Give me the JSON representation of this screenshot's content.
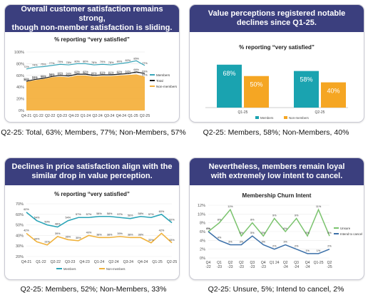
{
  "panels": [
    {
      "title_line1": "Overall customer satisfaction remains strong,",
      "title_line2": "though non-member satisfaction is sliding.",
      "subtitle": "% reporting “very satisfied”",
      "caption": "Q2-25: Total, 63%; Members, 77%; Non-Members, 57%"
    },
    {
      "title_line1": "Value perceptions registered notable",
      "title_line2": "declines since Q1-25.",
      "subtitle": "% reporting “very satisfied”",
      "caption": "Q2-25: Members, 58%; Non-Members, 40%"
    },
    {
      "title_line1": "Declines in price satisfaction align with the",
      "title_line2": "similar drop in value perception.",
      "subtitle": "% reporting “very satisfied”",
      "caption": "Q2-25: Members, 52%; Non-Members, 33%"
    },
    {
      "title_line1": "Nevertheless, members remain loyal",
      "title_line2": "with extremely low intent to cancel.",
      "subtitle": "Membership Churn Intent",
      "caption": "Q2-25: Unsure, 5%; Intend to cancel, 2%"
    }
  ],
  "chart_data": [
    {
      "type": "area",
      "title": "% reporting “very satisfied”",
      "categories": [
        "Q4-21",
        "Q1-22",
        "Q2-22",
        "Q3-22",
        "Q4-22",
        "Q1-23",
        "Q2-23",
        "Q3-23",
        "Q4-23",
        "Q1-24",
        "Q2-24",
        "Q3-24",
        "Q4-24",
        "Q1-25",
        "Q2-25"
      ],
      "x_tick_labels": [
        "Q4-21",
        "Q1-22",
        "Q2-22",
        "Q3-23",
        "Q4-23",
        "Q1-24",
        "Q2-24",
        "Q3-24",
        "Q4-24",
        "Q1-25",
        "Q2-25"
      ],
      "y_ticks": [
        "0%",
        "20%",
        "40%",
        "60%",
        "80%",
        "100%"
      ],
      "ylim": [
        0,
        100
      ],
      "series": [
        {
          "name": "Members",
          "color": "#3aa6b9",
          "values": [
            71,
            74,
            75,
            77,
            79,
            78,
            80,
            80,
            78,
            79,
            78,
            80,
            82,
            85,
            77
          ]
        },
        {
          "name": "Total",
          "color": "#1a1a1a",
          "values": [
            50,
            53,
            55,
            58,
            60,
            59,
            62,
            62,
            60,
            61,
            61,
            62,
            63,
            66,
            63
          ]
        },
        {
          "name": "Non-members",
          "color": "#f4b13f",
          "values": [
            48,
            51,
            53,
            56,
            57,
            56,
            59,
            59,
            57,
            58,
            58,
            59,
            60,
            61,
            57
          ]
        }
      ],
      "legend_position": "right"
    },
    {
      "type": "bar",
      "title": "% reporting “very satisfied”",
      "categories": [
        "Q1-25",
        "Q2-25"
      ],
      "ylim": [
        0,
        100
      ],
      "series": [
        {
          "name": "Members",
          "color": "#1aa3b0",
          "values": [
            68,
            58
          ]
        },
        {
          "name": "Non-members",
          "color": "#f5a623",
          "values": [
            50,
            40
          ]
        }
      ],
      "data_labels": [
        "68%",
        "50%",
        "58%",
        "40%"
      ],
      "legend_position": "bottom"
    },
    {
      "type": "line",
      "title": "% reporting “very satisfied”",
      "categories": [
        "Q4-21",
        "Q1-22",
        "Q2-22",
        "Q3-22",
        "Q4-22",
        "Q1-23",
        "Q2-23",
        "Q3-23",
        "Q4-23",
        "Q1-24",
        "Q2-24",
        "Q3-24",
        "Q4-24",
        "Q1-25",
        "Q2-25"
      ],
      "x_tick_labels": [
        "Q4-21",
        "Q1-22",
        "Q2-22",
        "Q3-23",
        "Q4-23",
        "Q1-24",
        "Q2-24",
        "Q3-24",
        "Q4-24",
        "Q1-25",
        "Q2-25"
      ],
      "y_ticks": [
        "20%",
        "30%",
        "40%",
        "50%",
        "60%",
        "70%"
      ],
      "ylim": [
        20,
        70
      ],
      "series": [
        {
          "name": "Members",
          "color": "#2aa4b7",
          "values": [
            62,
            54,
            50,
            48,
            54,
            57,
            57,
            58,
            58,
            57,
            56,
            58,
            57,
            60,
            52
          ]
        },
        {
          "name": "Non-members",
          "color": "#f0b23c",
          "values": [
            42,
            34,
            31,
            39,
            36,
            35,
            40,
            38,
            38,
            39,
            38,
            38,
            33,
            42,
            33
          ]
        }
      ],
      "legend_position": "bottom"
    },
    {
      "type": "line",
      "title": "Membership Churn Intent",
      "categories": [
        "Q4-22",
        "Q1-23",
        "Q2-23",
        "Q2-23",
        "Q3-23",
        "Q4-23",
        "Q1-24",
        "Q2-24",
        "Q3-24",
        "Q4-24",
        "Q1-25",
        "Q2-25"
      ],
      "x_tick_labels": [
        "Q4\n-22",
        "Q1\n-23",
        "Q2\n-23",
        "Q2\n-23",
        "Q3\n-23",
        "Q4\n-23",
        "Q1 24",
        "Q2\n-24",
        "Q3\n-24",
        "Q4\n-24",
        "Q1-25",
        "Q2\n-25"
      ],
      "y_ticks": [
        "0%",
        "2%",
        "4%",
        "6%",
        "8%",
        "10%",
        "12%"
      ],
      "ylim": [
        0,
        12
      ],
      "series": [
        {
          "name": "Unsure",
          "color": "#7bc36e",
          "values": [
            6,
            8,
            11,
            5,
            8,
            5,
            9,
            6,
            9,
            5,
            11,
            5
          ]
        },
        {
          "name": "Intend to cancel",
          "color": "#3b6fa8",
          "values": [
            6,
            4,
            3,
            3,
            5,
            3,
            2,
            3,
            2,
            1,
            1,
            2
          ]
        }
      ],
      "legend_position": "right"
    }
  ]
}
